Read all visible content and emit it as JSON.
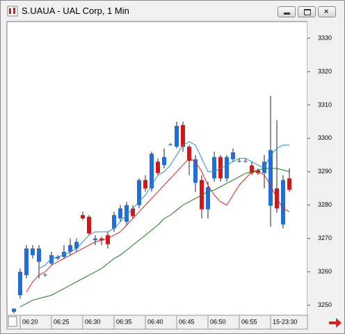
{
  "window": {
    "title": "S.UAUA - UAL Corp, 1 Min"
  },
  "chart_data": {
    "type": "candlestick",
    "categories": [
      null,
      "06:20",
      null,
      null,
      null,
      null,
      "06:25",
      null,
      null,
      null,
      null,
      "06:30",
      null,
      null,
      null,
      null,
      "06:35",
      null,
      null,
      null,
      null,
      "06:40",
      null,
      null,
      null,
      null,
      "06:45",
      null,
      null,
      null,
      null,
      "06:50",
      null,
      null,
      null,
      null,
      "06:55",
      null,
      null,
      null,
      null,
      "15-23:30",
      null,
      null,
      null
    ],
    "open": [
      3248,
      3253,
      3259,
      3265,
      3263,
      3259,
      3262.5,
      3264,
      3264.5,
      3266,
      3267,
      3277,
      3276.5,
      3269.5,
      3270,
      3271,
      3273,
      3276,
      3275,
      3279,
      3280,
      3287.5,
      3285,
      3293,
      3292,
      3298,
      3297.5,
      3304,
      3297.5,
      3286.7,
      3287.5,
      3278.75,
      3288,
      3294.4,
      3288,
      3293.75,
      3293,
      3293,
      3291.9,
      3290.4,
      3289.6,
      3279.8,
      3285,
      3274.2,
      3288
    ],
    "high": [
      3249,
      3261,
      3268,
      3268,
      3268,
      3259.5,
      3266,
      3265,
      3268,
      3270,
      3270,
      3278,
      3277,
      3271,
      3270.5,
      3272,
      3278,
      3280,
      3281,
      3280,
      3288,
      3289,
      3296,
      3294,
      3297,
      3298.6,
      3305,
      3305,
      3298,
      3295,
      3289,
      3287,
      3296,
      3295,
      3295,
      3297,
      3294,
      3294,
      3293,
      3291,
      3295,
      3312.7,
      3305.4,
      3289,
      3291
    ],
    "low": [
      3247.5,
      3252,
      3258,
      3264,
      3258,
      3258.5,
      3262,
      3263.5,
      3264,
      3265,
      3266,
      3275.5,
      3271,
      3268,
      3268,
      3267,
      3272,
      3275,
      3274,
      3276,
      3279,
      3284,
      3284,
      3289,
      3291,
      3297.8,
      3297,
      3296,
      3289,
      3284,
      3276,
      3276,
      3287,
      3287,
      3287,
      3293,
      3292.8,
      3292.8,
      3289,
      3289,
      3285,
      3273.5,
      3277.7,
      3273,
      3284
    ],
    "close": [
      3249,
      3260,
      3267,
      3267,
      3267,
      3259.2,
      3265,
      3264.5,
      3266,
      3268,
      3269,
      3276,
      3271.5,
      3270,
      3269.4,
      3268.3,
      3277,
      3279,
      3280,
      3276.7,
      3287.5,
      3285,
      3295.4,
      3289.6,
      3294.4,
      3298.2,
      3303.75,
      3297.5,
      3293.3,
      3293.75,
      3278.75,
      3285.4,
      3294.4,
      3288,
      3294.4,
      3295.8,
      3293.2,
      3293.2,
      3289.6,
      3289.6,
      3293,
      3296.5,
      3279,
      3287.5,
      3284.6
    ],
    "up_color": "#1f6fd6",
    "down_color": "#d01818",
    "series": [
      {
        "color": "#2a8ad8",
        "values": [
          null,
          null,
          null,
          null,
          3261,
          3262,
          3264,
          3264.5,
          3265,
          3266,
          3267,
          3269,
          3271,
          3272,
          3272,
          3272,
          3273,
          3275,
          3277,
          3279,
          3281,
          3283,
          3286,
          3289,
          3290,
          3292,
          3295,
          3298,
          3299,
          3298,
          3294,
          3290,
          3290,
          3291,
          3292,
          3293,
          3294,
          3294,
          3293,
          3292,
          3291,
          3295,
          3297,
          3298,
          3298
        ]
      },
      {
        "color": "#e02020",
        "values": [
          null,
          null,
          3254,
          3257,
          3259,
          3260,
          3262,
          3263,
          3264,
          3265,
          3266,
          3267,
          3268,
          3269,
          3269.5,
          3270,
          3271,
          3272,
          3274,
          3276,
          3278,
          3280,
          3282,
          3284,
          3286,
          3288,
          3290,
          3292,
          3294,
          3293,
          3290,
          3286,
          3283,
          3281,
          3280,
          3283,
          3286,
          3288,
          3290,
          3290,
          3289,
          3286,
          3282,
          3279,
          3278
        ]
      },
      {
        "color": "#1a7a1a",
        "values": [
          null,
          3249.5,
          3250.5,
          3251.5,
          3252,
          3252.5,
          3253,
          3254,
          3255,
          3256,
          3257,
          3258,
          3259,
          3260,
          3261,
          3262.5,
          3264,
          3265,
          3266.5,
          3268,
          3269.5,
          3271,
          3272.5,
          3274,
          3276,
          3277,
          3278.5,
          3280,
          3281,
          3282,
          3283,
          3284,
          3284.5,
          3285.5,
          3286.5,
          3287.5,
          3288.5,
          3289.5,
          3290,
          3290.5,
          3291,
          3291,
          3291,
          3290.5,
          3290
        ]
      }
    ],
    "ylim": [
      3247,
      3335
    ],
    "yticks": [
      3250,
      3260,
      3270,
      3280,
      3290,
      3300,
      3310,
      3320,
      3330
    ]
  }
}
